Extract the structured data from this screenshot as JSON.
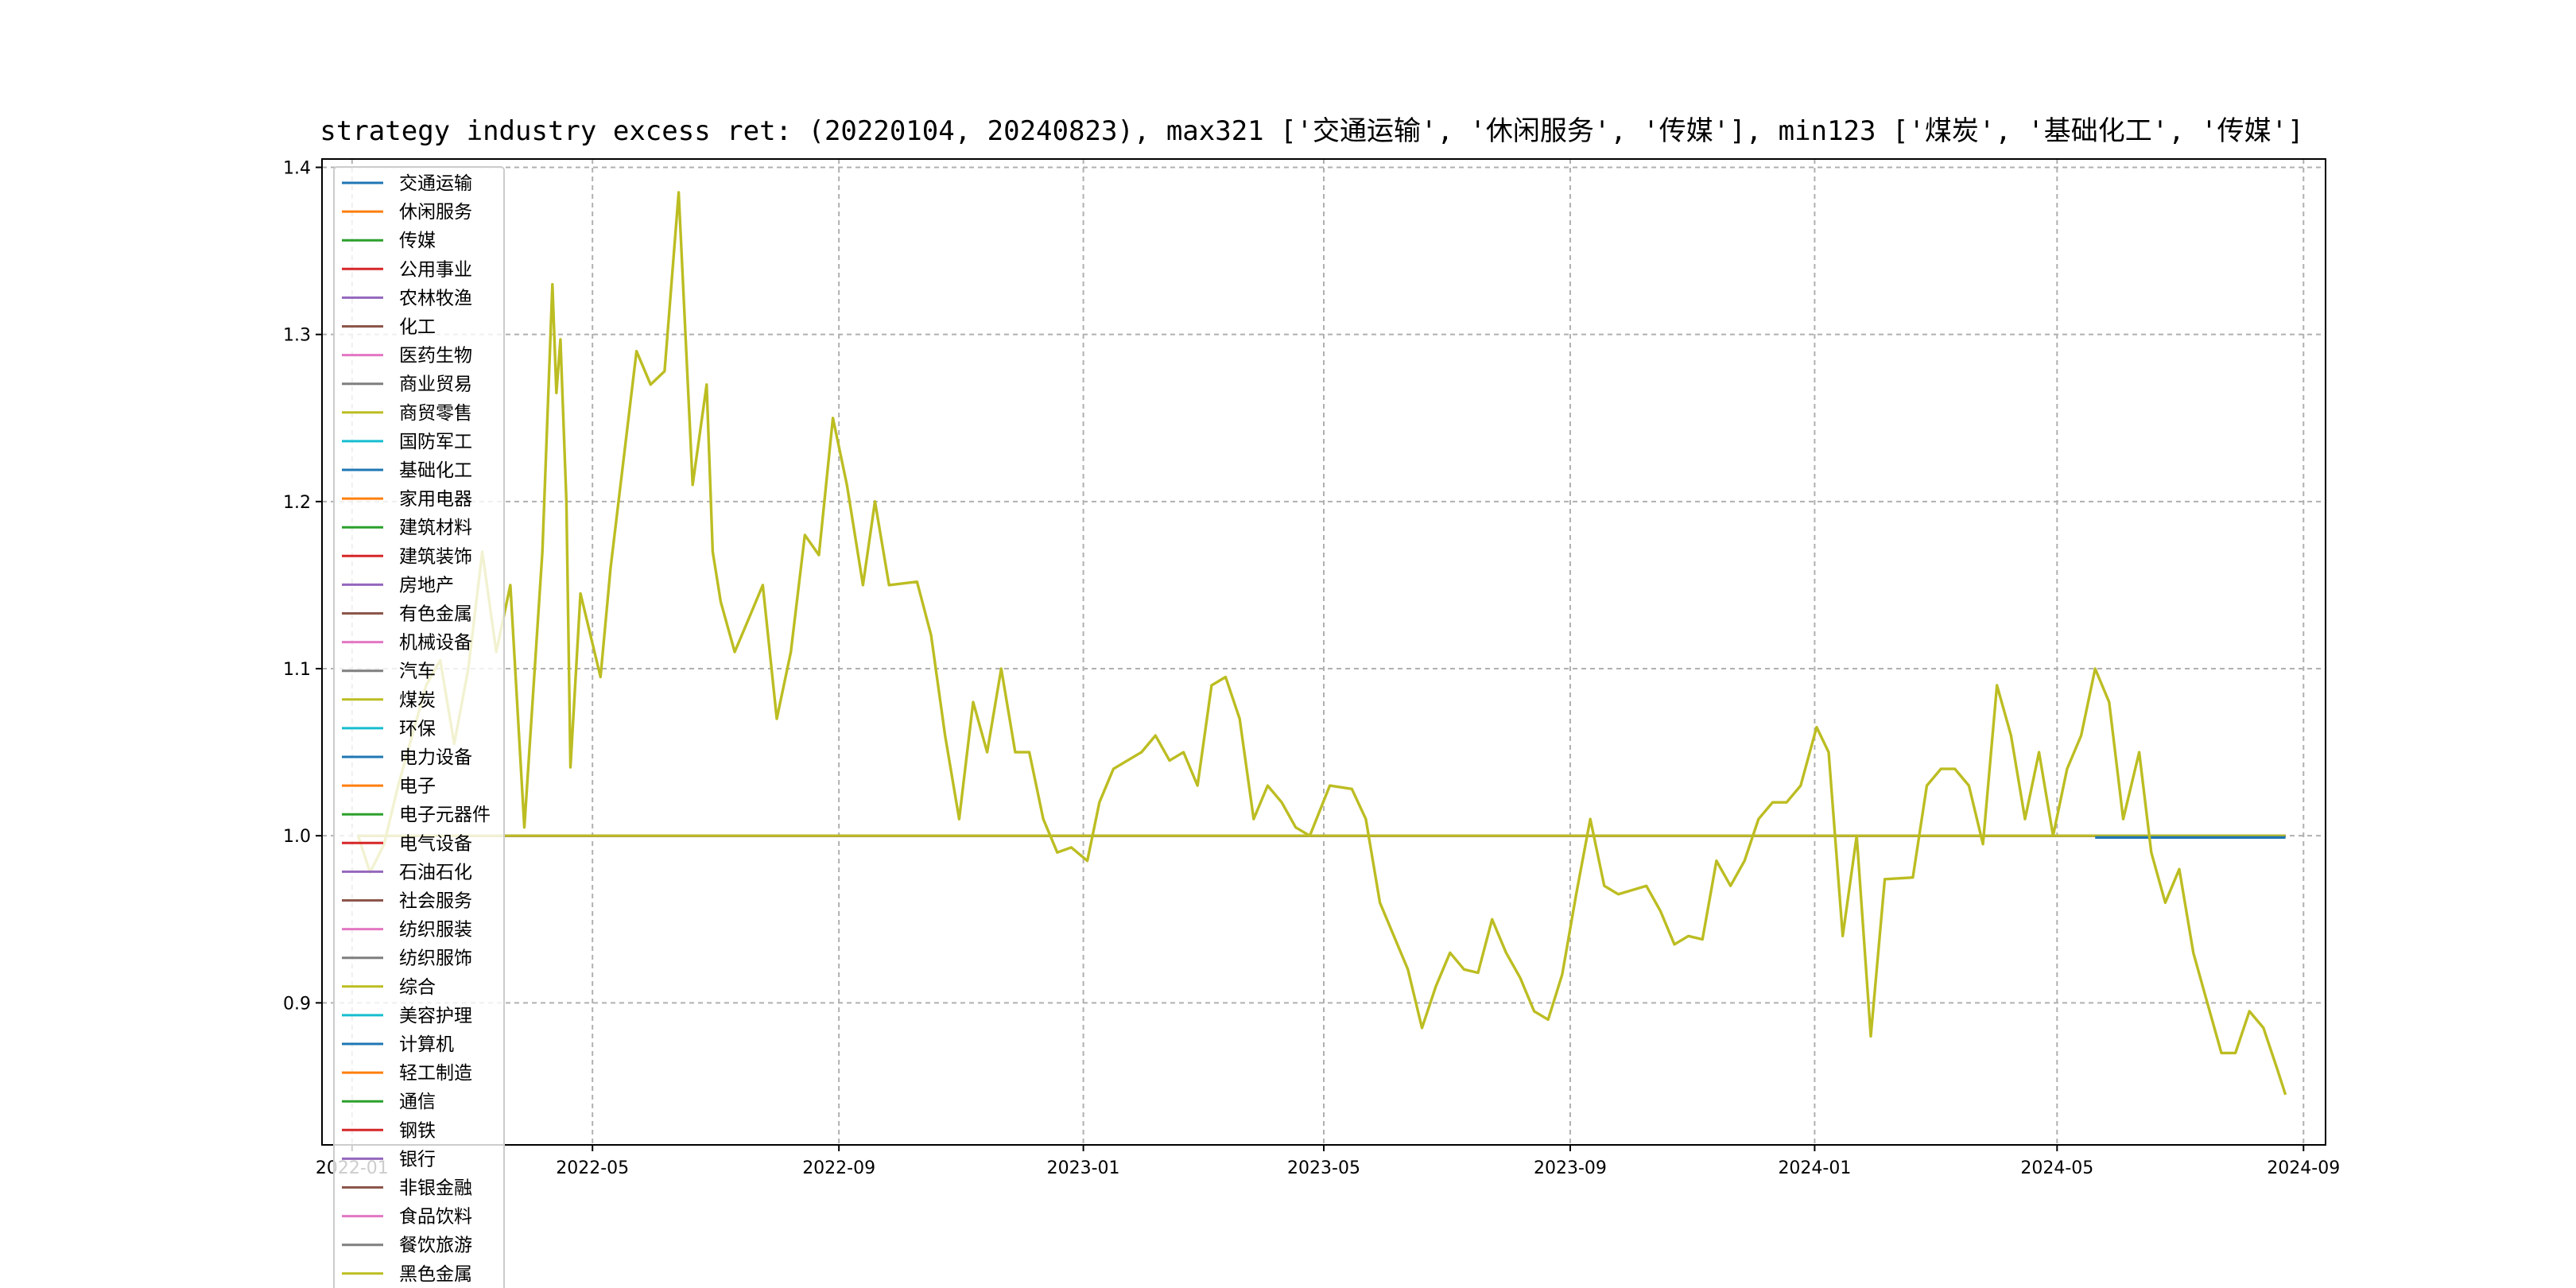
{
  "chart_data": {
    "type": "line",
    "title": "strategy industry excess ret: (20220104, 20240823), max321 ['交通运输', '休闲服务', '传媒'], min123 ['煤炭', '基础化工', '传媒']",
    "xlabel": "",
    "ylabel": "",
    "xlim": [
      "2021-12-17",
      "2024-09-12"
    ],
    "ylim": [
      0.815,
      1.405
    ],
    "x_ticks": [
      "2022-01",
      "2022-05",
      "2022-09",
      "2023-01",
      "2023-05",
      "2023-09",
      "2024-01",
      "2024-05",
      "2024-09"
    ],
    "y_ticks": [
      0.9,
      1.0,
      1.1,
      1.2,
      1.3,
      1.4
    ],
    "grid": true,
    "legend_position": "upper-left",
    "flat_series_range": [
      "2022-01-04",
      "2024-08-23"
    ],
    "flat_series_value": 1.0,
    "series": [
      {
        "name": "交通运输",
        "color": "#1f77b4"
      },
      {
        "name": "休闲服务",
        "color": "#ff7f0e"
      },
      {
        "name": "传媒",
        "color": "#2ca02c"
      },
      {
        "name": "公用事业",
        "color": "#d62728"
      },
      {
        "name": "农林牧渔",
        "color": "#9467bd"
      },
      {
        "name": "化工",
        "color": "#8c564b"
      },
      {
        "name": "医药生物",
        "color": "#e377c2"
      },
      {
        "name": "商业贸易",
        "color": "#7f7f7f"
      },
      {
        "name": "商贸零售",
        "color": "#bcbd22"
      },
      {
        "name": "国防军工",
        "color": "#17becf"
      },
      {
        "name": "基础化工",
        "color": "#1f77b4",
        "x": [
          "2024-05-20",
          "2024-08-23"
        ],
        "y": [
          0.999,
          0.999
        ]
      },
      {
        "name": "家用电器",
        "color": "#ff7f0e"
      },
      {
        "name": "建筑材料",
        "color": "#2ca02c"
      },
      {
        "name": "建筑装饰",
        "color": "#d62728"
      },
      {
        "name": "房地产",
        "color": "#9467bd"
      },
      {
        "name": "有色金属",
        "color": "#8c564b"
      },
      {
        "name": "机械设备",
        "color": "#e377c2"
      },
      {
        "name": "汽车",
        "color": "#7f7f7f"
      },
      {
        "name": "煤炭",
        "color": "#bcbd22",
        "x": [
          "2022-01-04",
          "2022-01-10",
          "2022-01-17",
          "2022-01-24",
          "2022-02-07",
          "2022-02-14",
          "2022-02-21",
          "2022-02-28",
          "2022-03-07",
          "2022-03-14",
          "2022-03-21",
          "2022-03-28",
          "2022-04-06",
          "2022-04-11",
          "2022-04-13",
          "2022-04-15",
          "2022-04-18",
          "2022-04-20",
          "2022-04-25",
          "2022-05-05",
          "2022-05-10",
          "2022-05-16",
          "2022-05-23",
          "2022-05-30",
          "2022-06-06",
          "2022-06-13",
          "2022-06-20",
          "2022-06-27",
          "2022-06-30",
          "2022-07-04",
          "2022-07-11",
          "2022-07-18",
          "2022-07-25",
          "2022-08-01",
          "2022-08-08",
          "2022-08-15",
          "2022-08-22",
          "2022-08-29",
          "2022-09-05",
          "2022-09-13",
          "2022-09-19",
          "2022-09-26",
          "2022-10-10",
          "2022-10-17",
          "2022-10-24",
          "2022-10-31",
          "2022-11-07",
          "2022-11-14",
          "2022-11-21",
          "2022-11-28",
          "2022-12-05",
          "2022-12-12",
          "2022-12-19",
          "2022-12-26",
          "2023-01-03",
          "2023-01-09",
          "2023-01-16",
          "2023-01-30",
          "2023-02-06",
          "2023-02-13",
          "2023-02-20",
          "2023-02-27",
          "2023-03-06",
          "2023-03-13",
          "2023-03-20",
          "2023-03-27",
          "2023-04-03",
          "2023-04-10",
          "2023-04-17",
          "2023-04-24",
          "2023-05-04",
          "2023-05-15",
          "2023-05-22",
          "2023-05-29",
          "2023-06-05",
          "2023-06-12",
          "2023-06-19",
          "2023-06-26",
          "2023-07-03",
          "2023-07-10",
          "2023-07-17",
          "2023-07-24",
          "2023-07-31",
          "2023-08-07",
          "2023-08-14",
          "2023-08-21",
          "2023-08-28",
          "2023-09-04",
          "2023-09-11",
          "2023-09-18",
          "2023-09-25",
          "2023-10-09",
          "2023-10-16",
          "2023-10-23",
          "2023-10-30",
          "2023-11-06",
          "2023-11-13",
          "2023-11-20",
          "2023-11-27",
          "2023-12-04",
          "2023-12-11",
          "2023-12-18",
          "2023-12-25",
          "2024-01-02",
          "2024-01-08",
          "2024-01-15",
          "2024-01-22",
          "2024-01-29",
          "2024-02-05",
          "2024-02-19",
          "2024-02-26",
          "2024-03-04",
          "2024-03-11",
          "2024-03-18",
          "2024-03-25",
          "2024-04-01",
          "2024-04-08",
          "2024-04-15",
          "2024-04-22",
          "2024-04-29",
          "2024-05-06",
          "2024-05-13",
          "2024-05-20",
          "2024-05-27",
          "2024-06-03",
          "2024-06-11",
          "2024-06-17",
          "2024-06-24",
          "2024-07-01",
          "2024-07-08",
          "2024-07-15",
          "2024-07-22",
          "2024-07-29",
          "2024-08-05",
          "2024-08-12",
          "2024-08-19",
          "2024-08-23"
        ],
        "y": [
          1.0,
          0.978,
          0.995,
          1.03,
          1.09,
          1.105,
          1.055,
          1.1,
          1.17,
          1.11,
          1.15,
          1.005,
          1.17,
          1.33,
          1.265,
          1.297,
          1.2,
          1.041,
          1.145,
          1.095,
          1.16,
          1.22,
          1.29,
          1.27,
          1.278,
          1.385,
          1.21,
          1.27,
          1.17,
          1.14,
          1.11,
          1.13,
          1.15,
          1.07,
          1.11,
          1.18,
          1.168,
          1.25,
          1.21,
          1.15,
          1.2,
          1.15,
          1.152,
          1.12,
          1.06,
          1.01,
          1.08,
          1.05,
          1.1,
          1.05,
          1.05,
          1.01,
          0.99,
          0.993,
          0.985,
          1.02,
          1.04,
          1.05,
          1.06,
          1.045,
          1.05,
          1.03,
          1.09,
          1.095,
          1.07,
          1.01,
          1.03,
          1.02,
          1.005,
          1.0,
          1.03,
          1.028,
          1.01,
          0.96,
          0.94,
          0.92,
          0.885,
          0.91,
          0.93,
          0.92,
          0.918,
          0.95,
          0.93,
          0.915,
          0.895,
          0.89,
          0.917,
          0.965,
          1.01,
          0.97,
          0.965,
          0.97,
          0.955,
          0.935,
          0.94,
          0.938,
          0.985,
          0.97,
          0.985,
          1.01,
          1.02,
          1.02,
          1.03,
          1.065,
          1.05,
          0.94,
          1.0,
          0.88,
          0.974,
          0.975,
          1.03,
          1.04,
          1.04,
          1.03,
          0.995,
          1.09,
          1.06,
          1.01,
          1.05,
          1.0,
          1.04,
          1.06,
          1.1,
          1.08,
          1.01,
          1.05,
          0.99,
          0.96,
          0.98,
          0.93,
          0.9,
          0.87,
          0.87,
          0.895,
          0.885,
          0.86,
          0.845
        ]
      },
      {
        "name": "环保",
        "color": "#17becf"
      },
      {
        "name": "电力设备",
        "color": "#1f77b4"
      },
      {
        "name": "电子",
        "color": "#ff7f0e"
      },
      {
        "name": "电子元器件",
        "color": "#2ca02c"
      },
      {
        "name": "电气设备",
        "color": "#d62728"
      },
      {
        "name": "石油石化",
        "color": "#9467bd"
      },
      {
        "name": "社会服务",
        "color": "#8c564b"
      },
      {
        "name": "纺织服装",
        "color": "#e377c2"
      },
      {
        "name": "纺织服饰",
        "color": "#7f7f7f"
      },
      {
        "name": "综合",
        "color": "#bcbd22"
      },
      {
        "name": "美容护理",
        "color": "#17becf"
      },
      {
        "name": "计算机",
        "color": "#1f77b4"
      },
      {
        "name": "轻工制造",
        "color": "#ff7f0e"
      },
      {
        "name": "通信",
        "color": "#2ca02c"
      },
      {
        "name": "钢铁",
        "color": "#d62728"
      },
      {
        "name": "银行",
        "color": "#9467bd"
      },
      {
        "name": "非银金融",
        "color": "#8c564b"
      },
      {
        "name": "食品饮料",
        "color": "#e377c2"
      },
      {
        "name": "餐饮旅游",
        "color": "#7f7f7f"
      },
      {
        "name": "黑色金属",
        "color": "#bcbd22"
      }
    ]
  }
}
